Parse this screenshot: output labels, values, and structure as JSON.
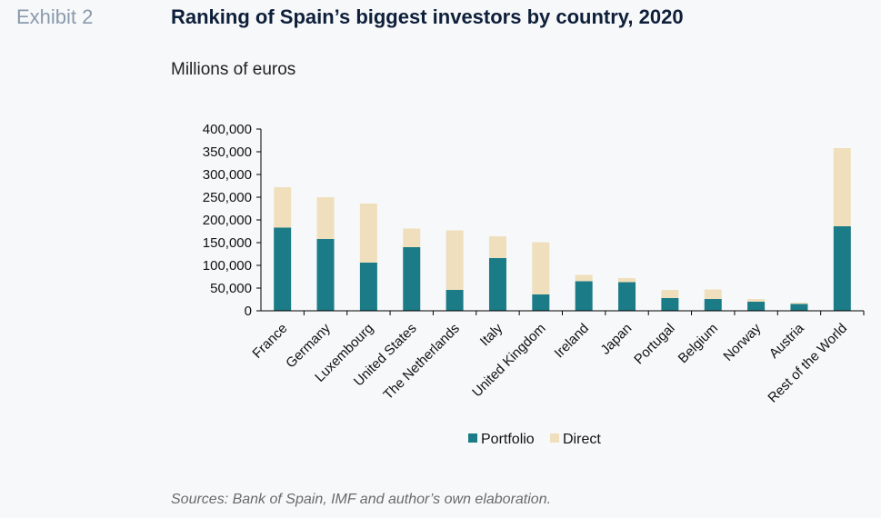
{
  "header": {
    "exhibit": "Exhibit 2",
    "title": "Ranking of Spain’s biggest investors by country, 2020",
    "subtitle": "Millions of euros"
  },
  "footer": {
    "source": "Sources: Bank of Spain, IMF and author’s own elaboration."
  },
  "colors": {
    "portfolio": "#1b7b86",
    "direct": "#f0dfbd",
    "axis": "#000000",
    "exhibit": "#8a9aac",
    "title": "#0e1f3a"
  },
  "chart_data": {
    "type": "bar",
    "stacked": true,
    "title": "Ranking of Spain’s biggest investors by country, 2020",
    "ylabel": "Millions of euros",
    "ylim": [
      0,
      400000
    ],
    "yticks": [
      "400,000",
      "350,000",
      "300,000",
      "250,000",
      "200,000",
      "150,000",
      "100,000",
      "50,000",
      "0"
    ],
    "ytick_values": [
      400000,
      350000,
      300000,
      250000,
      200000,
      150000,
      100000,
      50000,
      0
    ],
    "categories": [
      "France",
      "Germany",
      "Luxembourg",
      "United States",
      "The Netherlands",
      "Italy",
      "United Kingdom",
      "Ireland",
      "Japan",
      "Portugal",
      "Belgium",
      "Norway",
      "Austria",
      "Rest of the World"
    ],
    "series": [
      {
        "name": "Portfolio",
        "values": [
          183000,
          158000,
          106000,
          140000,
          46000,
          116000,
          36000,
          65000,
          63000,
          28000,
          26000,
          20000,
          15000,
          186000
        ]
      },
      {
        "name": "Direct",
        "values": [
          89000,
          92000,
          130000,
          41000,
          131000,
          48000,
          115000,
          14000,
          9000,
          18000,
          21000,
          6000,
          3000,
          172000
        ]
      }
    ],
    "legend_position": "bottom",
    "grid": false
  }
}
